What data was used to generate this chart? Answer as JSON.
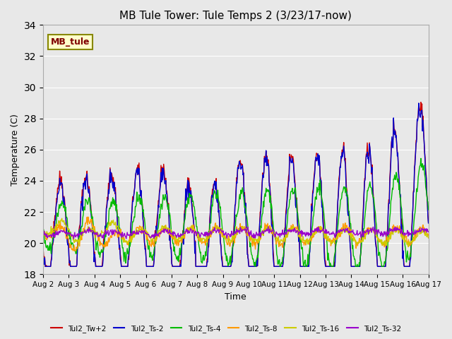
{
  "title": "MB Tule Tower: Tule Temps 2 (3/23/17-now)",
  "xlabel": "Time",
  "ylabel": "Temperature (C)",
  "ylim": [
    18,
    34
  ],
  "yticks": [
    18,
    20,
    22,
    24,
    26,
    28,
    30,
    32,
    34
  ],
  "legend_label": "MB_tule",
  "series_labels": [
    "Tul2_Tw+2",
    "Tul2_Ts-2",
    "Tul2_Ts-4",
    "Tul2_Ts-8",
    "Tul2_Ts-16",
    "Tul2_Ts-32"
  ],
  "series_colors": [
    "#cc0000",
    "#0000cc",
    "#00bb00",
    "#ff9900",
    "#cccc00",
    "#9900cc"
  ],
  "background_color": "#e8e8e8",
  "plot_bg_color": "#e8e8e8",
  "n_days": 15,
  "start_day": 2,
  "end_day": 17,
  "xtick_labels": [
    "Aug 2",
    "Aug 3",
    "Aug 4",
    "Aug 5",
    "Aug 6",
    "Aug 7",
    "Aug 8",
    "Aug 9",
    "Aug 10",
    "Aug 11",
    "Aug 12",
    "Aug 13",
    "Aug 14",
    "Aug 15",
    "Aug 16",
    "Aug 17"
  ]
}
